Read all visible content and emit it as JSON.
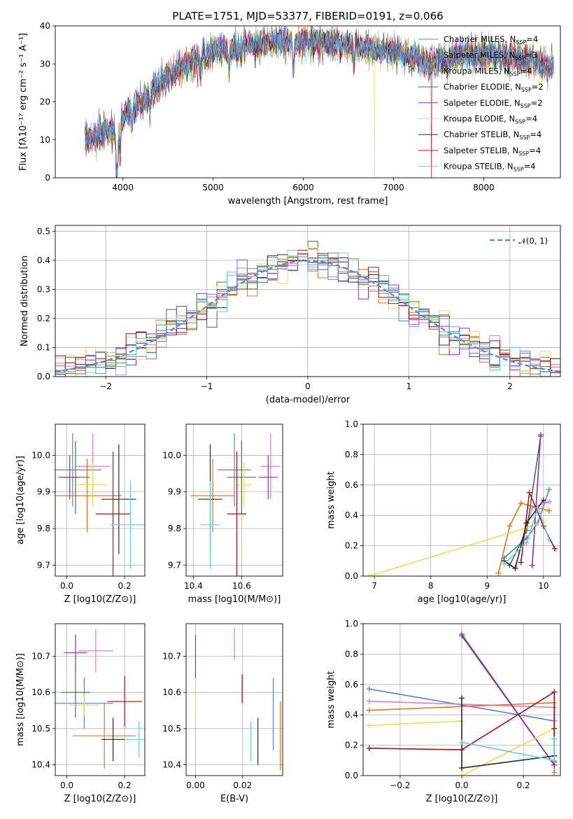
{
  "figure_title": "PLATE=1751, MJD=53377, FIBERID=0191, z=0.066",
  "colors": [
    "#5aa05a",
    "#e27bc8",
    "#e07820",
    "#3c7a3c",
    "#8e2ec0",
    "#e8e050",
    "#2a2a2a",
    "#b0101a",
    "#60d0dc",
    "#5a80e0"
  ],
  "chart_data": [
    {
      "id": "spectrum",
      "type": "line",
      "title": "PLATE=1751, MJD=53377, FIBERID=0191, z=0.066",
      "xlabel": "wavelength [Angstrom, rest frame]",
      "ylabel": "Flux [fλ10⁻¹⁷ erg cm⁻² s⁻¹ A⁻¹]",
      "xlim": [
        3250,
        8850
      ],
      "ylim": [
        0,
        40
      ],
      "xticks": [
        "4000",
        "5000",
        "6000",
        "7000",
        "8000"
      ],
      "yticks": [
        "0",
        "10",
        "20",
        "30",
        "40"
      ],
      "grid": false,
      "legend_position": "top-right",
      "continuum": {
        "x": [
          3580,
          3700,
          3800,
          3900,
          3930,
          4000,
          4100,
          4200,
          4300,
          4400,
          4500,
          4600,
          4700,
          4800,
          4900,
          5000,
          5100,
          5200,
          5300,
          5400,
          5500,
          5600,
          5700,
          5800,
          5900,
          6000,
          6100,
          6200,
          6300,
          6400,
          6500,
          6600,
          6700,
          6800,
          6900,
          7000,
          7100,
          7200,
          7300,
          7400,
          7500,
          7600,
          7700,
          7800,
          7900,
          8000,
          8100,
          8200,
          8300,
          8400,
          8500,
          8600,
          8700
        ],
        "y": [
          10,
          11,
          12,
          13,
          8,
          16,
          18,
          20,
          22,
          24,
          27,
          28,
          30,
          31,
          32,
          33,
          34,
          34,
          34.5,
          35,
          35,
          35.5,
          35.5,
          35.5,
          35,
          36,
          36,
          35.5,
          35.5,
          35,
          35,
          34.5,
          34,
          33.5,
          33.5,
          33,
          33,
          32,
          31,
          30,
          31,
          31,
          32,
          32,
          32.5,
          32.5,
          32,
          32,
          32,
          31,
          31,
          30,
          29
        ]
      },
      "series": [
        {
          "name": "Chabrier MILES, N_SSP=4"
        },
        {
          "name": "Salpeter MILES, N_SSP=3"
        },
        {
          "name": "Kroupa MILES, N_SSP=4"
        },
        {
          "name": "Chabrier ELODIE, N_SSP=2"
        },
        {
          "name": "Salpeter ELODIE, N_SSP=2"
        },
        {
          "name": "Kroupa ELODIE, N_SSP=4"
        },
        {
          "name": "Chabrier STELIB, N_SSP=4"
        },
        {
          "name": "Salpeter STELIB, N_SSP=4"
        },
        {
          "name": "Kroupa STELIB, N_SSP=4"
        }
      ]
    },
    {
      "id": "residuals",
      "type": "histogram",
      "xlabel": "(data-model)/error",
      "ylabel": "Normed distribution",
      "xlim": [
        -2.5,
        2.5
      ],
      "ylim": [
        0,
        0.52
      ],
      "xticks": [
        "−2",
        "−1",
        "0",
        "1",
        "2"
      ],
      "yticks": [
        "0.0",
        "0.1",
        "0.2",
        "0.3",
        "0.4",
        "0.5"
      ],
      "grid": true,
      "bin_width": 0.1,
      "legend": "𝒩(0, 1)",
      "legend_position": "top-right"
    },
    {
      "id": "age_vs_Z",
      "type": "scatter",
      "xlabel": "Z [log10(Z/Z⊙)]",
      "ylabel": "age [log10(age/yr)]",
      "xlim": [
        -0.04,
        0.27
      ],
      "ylim": [
        9.67,
        10.085
      ],
      "xticks": [
        "0.0",
        "0.2"
      ],
      "yticks": [
        "9.7",
        "9.8",
        "9.9",
        "10.0"
      ],
      "grid": true,
      "points": [
        {
          "x": 0.02,
          "y": 9.96,
          "xerr": 0.1,
          "yerr": 0.1,
          "c": 9
        },
        {
          "x": 0.09,
          "y": 9.97,
          "xerr": 0.06,
          "yerr": 0.09,
          "c": 1
        },
        {
          "x": 0.07,
          "y": 9.89,
          "xerr": 0.12,
          "yerr": 0.1,
          "c": 2
        },
        {
          "x": 0.03,
          "y": 9.94,
          "xerr": 0.05,
          "yerr": 0.1,
          "c": 3
        },
        {
          "x": 0.01,
          "y": 9.94,
          "xerr": 0.04,
          "yerr": 0.06,
          "c": 4
        },
        {
          "x": 0.09,
          "y": 9.92,
          "xerr": 0.05,
          "yerr": 0.06,
          "c": 5
        },
        {
          "x": 0.18,
          "y": 9.88,
          "xerr": 0.06,
          "yerr": 0.15,
          "c": 6
        },
        {
          "x": 0.16,
          "y": 9.84,
          "xerr": 0.06,
          "yerr": 0.17,
          "c": 7
        },
        {
          "x": 0.22,
          "y": 9.81,
          "xerr": 0.07,
          "yerr": 0.12,
          "c": 8
        }
      ]
    },
    {
      "id": "age_vs_mass",
      "type": "scatter",
      "xlabel": "mass [log10(M/M⊙)]",
      "ylabel": "",
      "xlim": [
        10.37,
        10.77
      ],
      "ylim": [
        9.67,
        10.085
      ],
      "xticks": [
        "10.4",
        "10.6"
      ],
      "yticks": [
        "9.7",
        "9.8",
        "9.9",
        "10.0"
      ],
      "grid": true,
      "points": [
        {
          "x": 10.57,
          "y": 9.96,
          "xerr": 0.07,
          "yerr": 0.1,
          "c": 9
        },
        {
          "x": 10.72,
          "y": 9.97,
          "xerr": 0.04,
          "yerr": 0.09,
          "c": 1
        },
        {
          "x": 10.48,
          "y": 9.89,
          "xerr": 0.09,
          "yerr": 0.1,
          "c": 2
        },
        {
          "x": 10.6,
          "y": 9.94,
          "xerr": 0.06,
          "yerr": 0.1,
          "c": 3
        },
        {
          "x": 10.71,
          "y": 9.94,
          "xerr": 0.04,
          "yerr": 0.06,
          "c": 4
        },
        {
          "x": 10.61,
          "y": 9.92,
          "xerr": 0.03,
          "yerr": 0.06,
          "c": 5
        },
        {
          "x": 10.47,
          "y": 9.88,
          "xerr": 0.05,
          "yerr": 0.15,
          "c": 6
        },
        {
          "x": 10.58,
          "y": 9.84,
          "xerr": 0.04,
          "yerr": 0.17,
          "c": 7
        },
        {
          "x": 10.47,
          "y": 9.81,
          "xerr": 0.04,
          "yerr": 0.12,
          "c": 8
        }
      ]
    },
    {
      "id": "weight_vs_age",
      "type": "line",
      "xlabel": "age [log10(age/yr)]",
      "ylabel": "mass weight",
      "xlim": [
        6.8,
        10.3
      ],
      "ylim": [
        0,
        1
      ],
      "xticks": [
        "7",
        "8",
        "9",
        "10"
      ],
      "yticks": [
        "0.0",
        "0.2",
        "0.4",
        "0.6",
        "0.8",
        "1.0"
      ],
      "grid": true,
      "series": [
        {
          "c": 9,
          "x": [
            9.3,
            9.7,
            9.9,
            10.1
          ],
          "y": [
            0.12,
            0.25,
            0.35,
            0.57
          ]
        },
        {
          "c": 1,
          "x": [
            9.5,
            9.8,
            10.1
          ],
          "y": [
            0.06,
            0.45,
            0.49
          ]
        },
        {
          "c": 2,
          "x": [
            9.2,
            9.4,
            9.6,
            10.1
          ],
          "y": [
            0.02,
            0.33,
            0.48,
            0.43
          ]
        },
        {
          "c": 3,
          "x": [
            9.4,
            9.7,
            9.95
          ],
          "y": [
            0.07,
            0.3,
            0.92
          ]
        },
        {
          "c": 4,
          "x": [
            9.8,
            9.95
          ],
          "y": [
            0.07,
            0.93
          ]
        },
        {
          "c": 5,
          "x": [
            6.9,
            9.8,
            10.0
          ],
          "y": [
            0.0,
            0.33,
            0.36
          ]
        },
        {
          "c": 6,
          "x": [
            9.3,
            9.5,
            9.7,
            10.0
          ],
          "y": [
            0.1,
            0.05,
            0.35,
            0.5
          ]
        },
        {
          "c": 7,
          "x": [
            9.6,
            9.75,
            10.0,
            10.2
          ],
          "y": [
            0.09,
            0.55,
            0.33,
            0.18
          ]
        },
        {
          "c": 8,
          "x": [
            9.3,
            9.7,
            9.9,
            10.1
          ],
          "y": [
            0.08,
            0.22,
            0.45,
            0.24
          ]
        }
      ]
    },
    {
      "id": "mass_vs_Z",
      "type": "scatter",
      "xlabel": "Z [log10(Z/Z⊙)]",
      "ylabel": "mass [log10(M/M⊙)]",
      "xlim": [
        -0.04,
        0.27
      ],
      "ylim": [
        10.37,
        10.79
      ],
      "xticks": [
        "0.0",
        "0.2"
      ],
      "yticks": [
        "10.4",
        "10.5",
        "10.6",
        "10.7"
      ],
      "grid": true,
      "points": [
        {
          "x": 0.06,
          "y": 10.57,
          "xerr": 0.1,
          "yerr": 0.07,
          "c": 9
        },
        {
          "x": 0.1,
          "y": 10.715,
          "xerr": 0.06,
          "yerr": 0.06,
          "c": 1
        },
        {
          "x": 0.13,
          "y": 10.48,
          "xerr": 0.11,
          "yerr": 0.09,
          "c": 2
        },
        {
          "x": 0.03,
          "y": 10.6,
          "xerr": 0.05,
          "yerr": 0.07,
          "c": 3
        },
        {
          "x": 0.03,
          "y": 10.71,
          "xerr": 0.04,
          "yerr": 0.05,
          "c": 4
        },
        {
          "x": 0.06,
          "y": 10.565,
          "xerr": 0.05,
          "yerr": 0.03,
          "c": 5
        },
        {
          "x": 0.16,
          "y": 10.47,
          "xerr": 0.04,
          "yerr": 0.06,
          "c": 6
        },
        {
          "x": 0.2,
          "y": 10.575,
          "xerr": 0.06,
          "yerr": 0.07,
          "c": 7
        },
        {
          "x": 0.25,
          "y": 10.47,
          "xerr": 0.05,
          "yerr": 0.05,
          "c": 8
        }
      ]
    },
    {
      "id": "mass_vs_ebv",
      "type": "scatter",
      "xlabel": "E(B-V)",
      "ylabel": "",
      "xlim": [
        -0.004,
        0.037
      ],
      "ylim": [
        10.37,
        10.79
      ],
      "xticks": [
        "0.00",
        "0.02"
      ],
      "yticks": [
        "10.4",
        "10.5",
        "10.6",
        "10.7"
      ],
      "grid": true,
      "points": [
        {
          "x": 0.033,
          "y": 10.54,
          "yerr": 0.1,
          "c": 9
        },
        {
          "x": 0.0165,
          "y": 10.735,
          "yerr": 0.045,
          "c": 1
        },
        {
          "x": 0.036,
          "y": 10.48,
          "yerr": 0.095,
          "c": 2
        },
        {
          "x": 0.0,
          "y": 10.7,
          "yerr": 0.06,
          "c": 4
        },
        {
          "x": 0.0,
          "y": 10.56,
          "yerr": 0.055,
          "c": 5
        },
        {
          "x": 0.0265,
          "y": 10.465,
          "yerr": 0.065,
          "c": 6
        },
        {
          "x": 0.0198,
          "y": 10.61,
          "yerr": 0.04,
          "c": 7
        },
        {
          "x": 0.0235,
          "y": 10.465,
          "yerr": 0.055,
          "c": 8
        }
      ]
    },
    {
      "id": "weight_vs_Z",
      "type": "line",
      "xlabel": "Z [log10(Z/Z⊙)]",
      "ylabel": "mass weight",
      "xlim": [
        -0.32,
        0.32
      ],
      "ylim": [
        0,
        1
      ],
      "xticks": [
        "−0.2",
        "0.0",
        "0.2"
      ],
      "yticks": [
        "0.0",
        "0.2",
        "0.4",
        "0.6",
        "0.8",
        "1.0"
      ],
      "grid": true,
      "series": [
        {
          "c": 9,
          "x": [
            -0.3,
            0.3
          ],
          "y": [
            0.57,
            0.36
          ]
        },
        {
          "c": 1,
          "x": [
            -0.3,
            0.3
          ],
          "y": [
            0.49,
            0.45
          ]
        },
        {
          "c": 2,
          "x": [
            -0.3,
            0.3,
            0.3
          ],
          "y": [
            0.43,
            0.48,
            0.02
          ]
        },
        {
          "c": 3,
          "x": [
            0.0,
            0.3
          ],
          "y": [
            0.92,
            0.07
          ]
        },
        {
          "c": 4,
          "x": [
            0.0,
            0.3
          ],
          "y": [
            0.93,
            0.07
          ]
        },
        {
          "c": 5,
          "x": [
            -0.3,
            0.0,
            0.0,
            0.3
          ],
          "y": [
            0.33,
            0.36,
            0.0,
            0.31
          ]
        },
        {
          "c": 6,
          "x": [
            0.0,
            0.0,
            0.3,
            0.3
          ],
          "y": [
            0.51,
            0.05,
            0.13,
            0.31
          ]
        },
        {
          "c": 7,
          "x": [
            -0.3,
            0.0,
            0.3,
            0.3
          ],
          "y": [
            0.18,
            0.17,
            0.55,
            0.09
          ]
        },
        {
          "c": 8,
          "x": [
            0.0,
            0.3,
            0.3
          ],
          "y": [
            0.22,
            0.1,
            0.24
          ]
        }
      ]
    }
  ]
}
